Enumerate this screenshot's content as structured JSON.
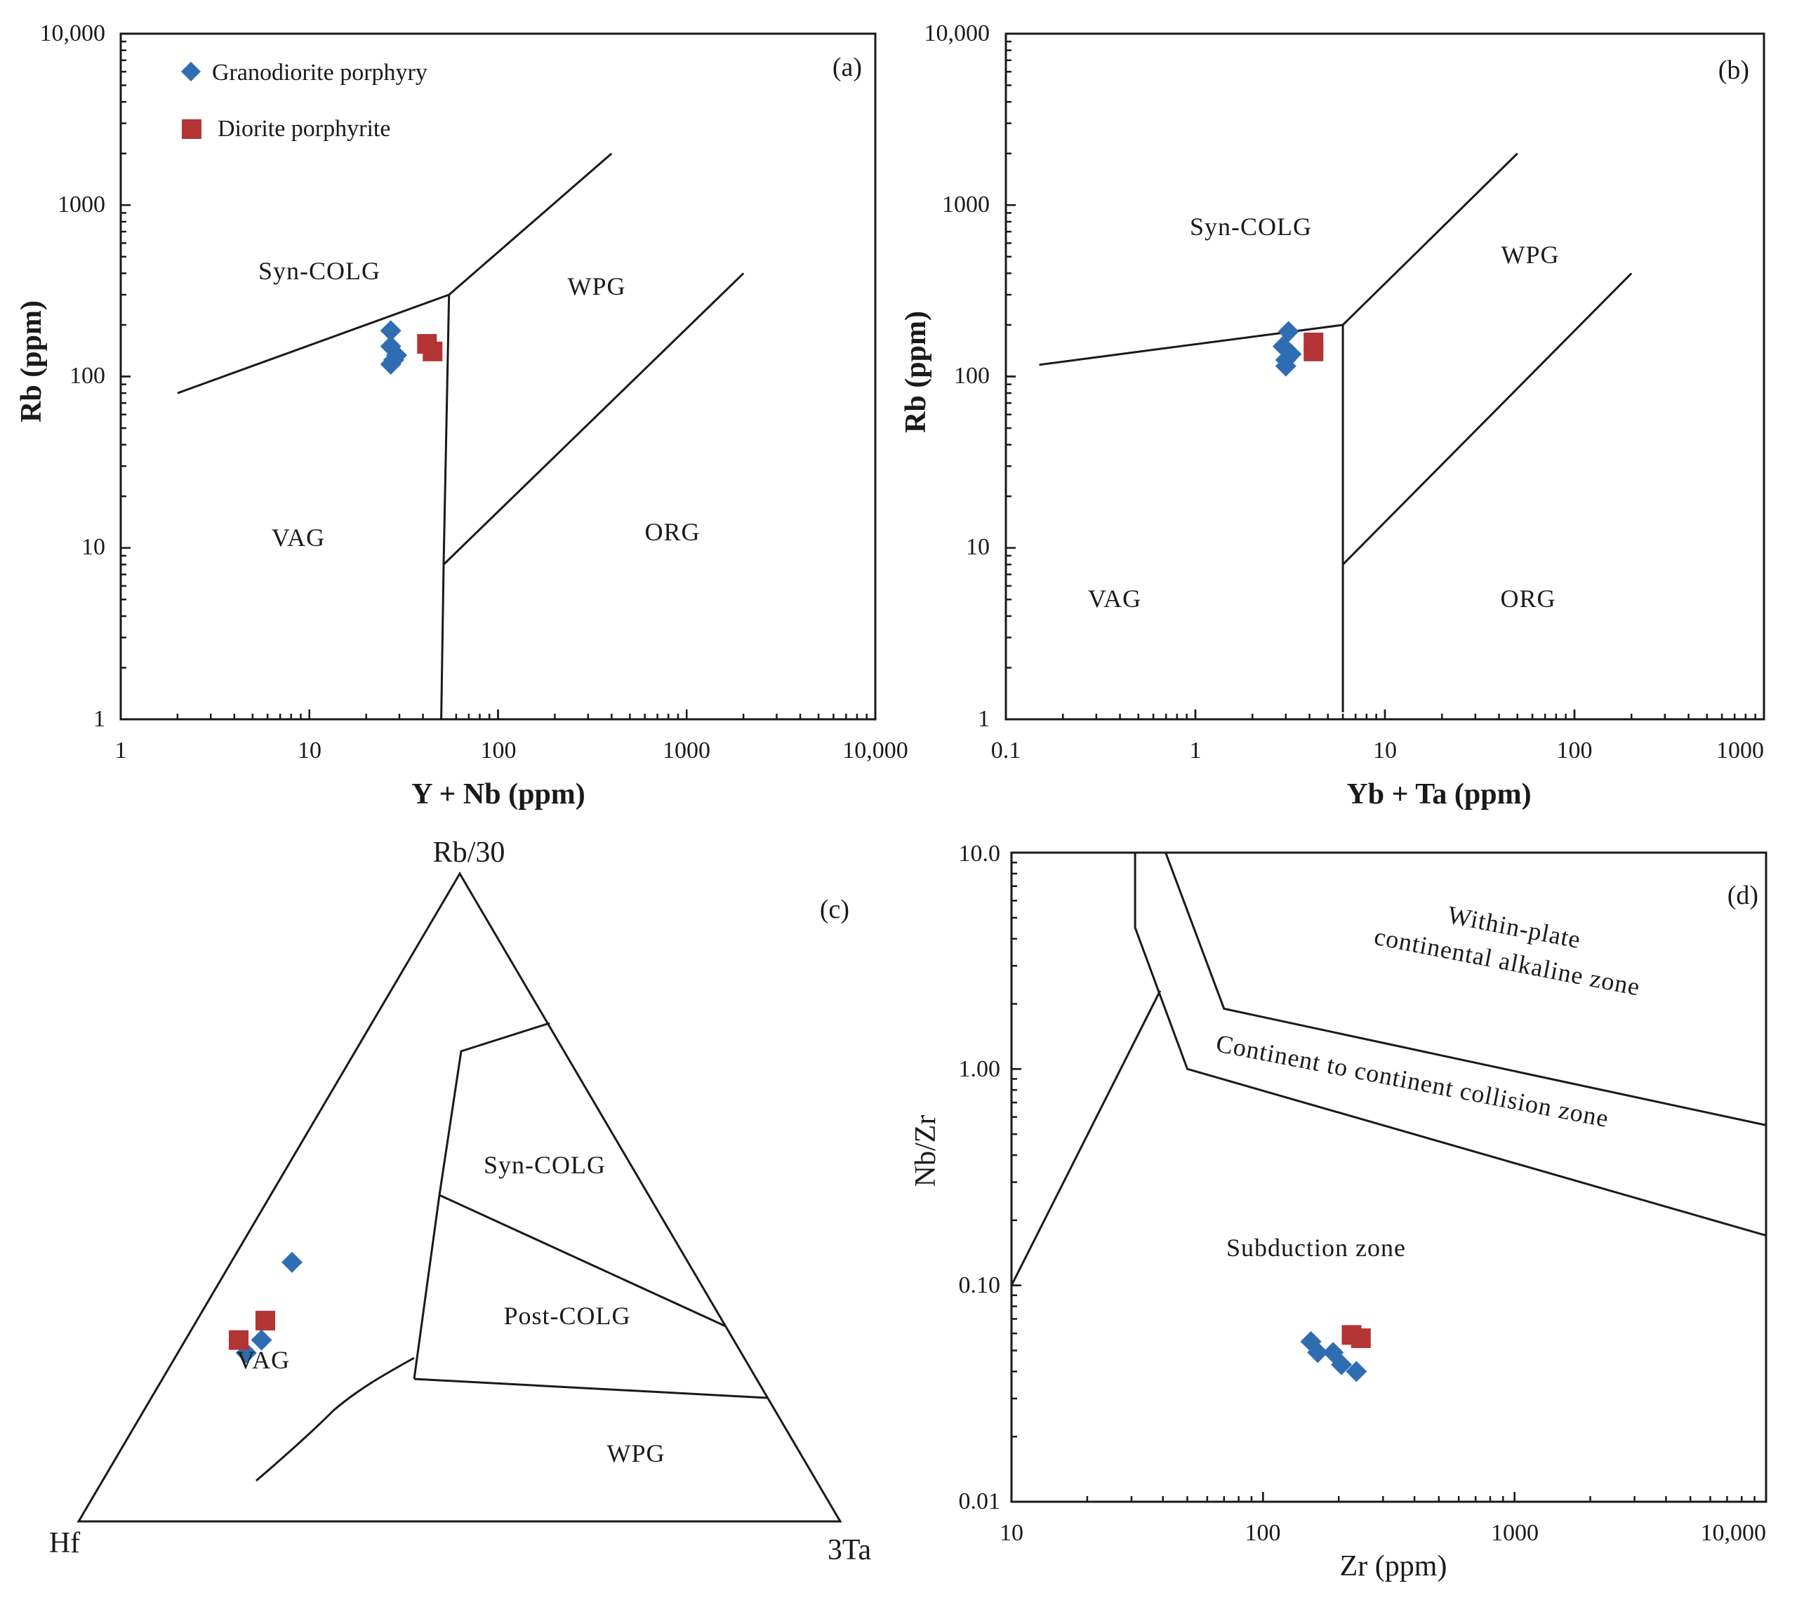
{
  "colors": {
    "granodiorite": "#2f6db3",
    "diorite": "#b33434",
    "line": "#1a1a1a"
  },
  "legend": {
    "granodiorite": "Granodiorite porphyry",
    "diorite": "Diorite porphyrite"
  },
  "chart_data": [
    {
      "id": "a",
      "type": "scatter",
      "panel_label": "(a)",
      "xlabel": "Y + Nb (ppm)",
      "ylabel": "Rb (ppm)",
      "xscale": "log",
      "yscale": "log",
      "xlim": [
        1,
        10000
      ],
      "ylim": [
        1,
        10000
      ],
      "xticks": [
        "1",
        "10",
        "100",
        "1000",
        "10,000"
      ],
      "yticks": [
        "1",
        "10",
        "100",
        "1000",
        "10,000"
      ],
      "zones": [
        "Syn-COLG",
        "WPG",
        "VAG",
        "ORG"
      ],
      "boundaries": [
        [
          [
            2,
            80
          ],
          [
            55,
            300
          ],
          [
            400,
            2000
          ]
        ],
        [
          [
            55,
            300
          ],
          [
            51.5,
            8
          ],
          [
            50,
            1
          ]
        ],
        [
          [
            51.5,
            8
          ],
          [
            2000,
            400
          ]
        ]
      ],
      "series": [
        {
          "name": "Granodiorite porphyry",
          "marker": "diamond",
          "points": [
            [
              27,
              185
            ],
            [
              27,
              150
            ],
            [
              29,
              133
            ],
            [
              28,
              125
            ],
            [
              27,
              118
            ]
          ]
        },
        {
          "name": "Diorite porphyrite",
          "marker": "square",
          "points": [
            [
              42,
              155
            ],
            [
              45,
              140
            ]
          ]
        }
      ]
    },
    {
      "id": "b",
      "type": "scatter",
      "panel_label": "(b)",
      "xlabel": "Yb + Ta (ppm)",
      "ylabel": "Rb (ppm)",
      "xscale": "log",
      "yscale": "log",
      "xlim": [
        0.1,
        1000
      ],
      "ylim": [
        1,
        10000
      ],
      "xticks": [
        "0.1",
        "1",
        "10",
        "100",
        "1000"
      ],
      "yticks": [
        "1",
        "10",
        "100",
        "1000",
        "10,000"
      ],
      "zones": [
        "Syn-COLG",
        "WPG",
        "VAG",
        "ORG"
      ],
      "boundaries": [
        [
          [
            0.15,
            117
          ],
          [
            6,
            200
          ],
          [
            50,
            2000
          ]
        ],
        [
          [
            6,
            200
          ],
          [
            6,
            8
          ],
          [
            6,
            1.1
          ]
        ],
        [
          [
            6,
            8
          ],
          [
            200,
            400
          ]
        ]
      ],
      "series": [
        {
          "name": "Granodiorite porphyry",
          "marker": "diamond",
          "points": [
            [
              3.1,
              183
            ],
            [
              2.9,
              150
            ],
            [
              3.2,
              135
            ],
            [
              3.0,
              125
            ],
            [
              3.0,
              115
            ]
          ]
        },
        {
          "name": "Diorite porphyrite",
          "marker": "square",
          "points": [
            [
              4.2,
              158
            ],
            [
              4.2,
              140
            ]
          ]
        }
      ]
    },
    {
      "id": "c",
      "type": "ternary",
      "panel_label": "(c)",
      "apices": {
        "top": "Rb/30",
        "left": "Hf",
        "right": "3Ta"
      },
      "zones": [
        "Syn-COLG",
        "Post-COLG",
        "VAG",
        "WPG"
      ],
      "series": [
        {
          "name": "Granodiorite porphyry",
          "marker": "diamond",
          "points": [
            [
              0.52,
              0.4,
              0.08
            ],
            [
              0.62,
              0.28,
              0.1
            ],
            [
              0.65,
              0.26,
              0.09
            ]
          ]
        },
        {
          "name": "Diorite porphyrite",
          "marker": "square",
          "points": [
            [
              0.6,
              0.31,
              0.09
            ],
            [
              0.65,
              0.28,
              0.07
            ]
          ]
        }
      ]
    },
    {
      "id": "d",
      "type": "scatter",
      "panel_label": "(d)",
      "xlabel": "Zr (ppm)",
      "ylabel": "Nb/Zr",
      "xscale": "log",
      "yscale": "log",
      "xlim": [
        10,
        10000
      ],
      "ylim": [
        0.01,
        10
      ],
      "xticks": [
        "10",
        "100",
        "1000",
        "10,000"
      ],
      "yticks": [
        "0.01",
        "0.10",
        "1.00",
        "10.0"
      ],
      "zones": [
        "Within-plate",
        "continental alkaline zone",
        "Continent to continent collision zone",
        "Subduction zone"
      ],
      "boundaries": [
        [
          [
            31,
            10
          ],
          [
            31,
            4.5
          ],
          [
            50,
            1.0
          ],
          [
            10000,
            0.17
          ]
        ],
        [
          [
            41,
            10
          ],
          [
            70,
            1.9
          ],
          [
            10000,
            0.55
          ]
        ],
        [
          [
            10,
            0.1
          ],
          [
            39,
            2.3
          ]
        ]
      ],
      "series": [
        {
          "name": "Granodiorite porphyry",
          "marker": "diamond",
          "points": [
            [
              155,
              0.055
            ],
            [
              165,
              0.049
            ],
            [
              190,
              0.049
            ],
            [
              205,
              0.043
            ],
            [
              235,
              0.04
            ]
          ]
        },
        {
          "name": "Diorite porphyrite",
          "marker": "square",
          "points": [
            [
              225,
              0.059
            ],
            [
              245,
              0.057
            ]
          ]
        }
      ]
    }
  ]
}
